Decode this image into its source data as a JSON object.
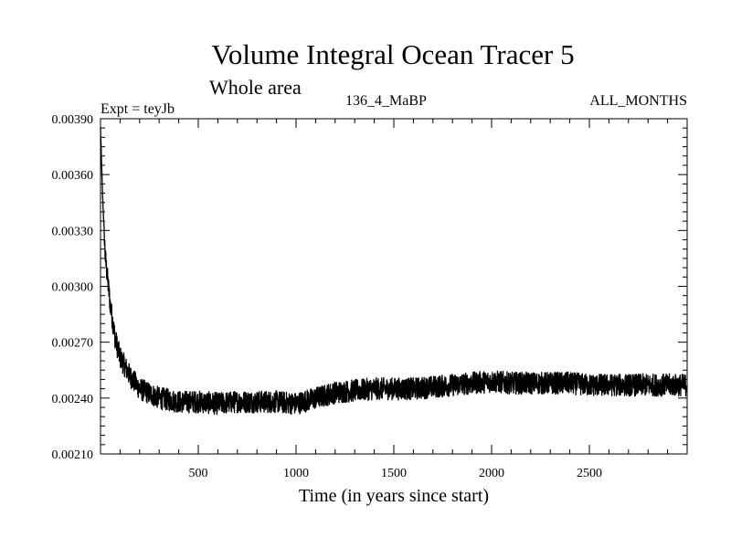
{
  "chart_data": {
    "type": "line",
    "title": "Volume Integral Ocean Tracer 5",
    "subtitle": "Whole area",
    "experiment": "Expt = teyJb",
    "run_label": "136_4_MaBP",
    "season": "ALL_MONTHS",
    "xlabel": "Time (in years since start)",
    "ylabel": "",
    "xlim": [
      0,
      3000
    ],
    "ylim": [
      0.0021,
      0.0039
    ],
    "x_ticks": [
      500,
      1000,
      1500,
      2000,
      2500
    ],
    "x_tick_labels": [
      "500",
      "1000",
      "1500",
      "2000",
      "2500"
    ],
    "y_ticks": [
      0.0021,
      0.0024,
      0.0027,
      0.003,
      0.0033,
      0.0036,
      0.0039
    ],
    "y_tick_labels": [
      "0.00210",
      "0.00240",
      "0.00270",
      "0.00300",
      "0.00330",
      "0.00360",
      "0.00390"
    ],
    "series": [
      {
        "name": "Tracer 5",
        "color": "#000000",
        "x": [
          0,
          10,
          25,
          50,
          75,
          100,
          150,
          200,
          300,
          400,
          500,
          600,
          700,
          800,
          900,
          1000,
          1100,
          1200,
          1300,
          1400,
          1500,
          1600,
          1700,
          1800,
          1900,
          2000,
          2100,
          2200,
          2300,
          2400,
          2500,
          2600,
          2700,
          2800,
          2900,
          3000
        ],
        "values": [
          0.00385,
          0.0035,
          0.00315,
          0.0029,
          0.00272,
          0.00262,
          0.00252,
          0.00245,
          0.0024,
          0.00238,
          0.00238,
          0.00237,
          0.00238,
          0.00238,
          0.00238,
          0.00237,
          0.0024,
          0.00243,
          0.00244,
          0.00245,
          0.00245,
          0.00245,
          0.00246,
          0.00247,
          0.00248,
          0.00249,
          0.00248,
          0.00248,
          0.00248,
          0.00248,
          0.00247,
          0.00247,
          0.00247,
          0.00247,
          0.00247,
          0.00247
        ],
        "noise_amplitude": 6e-05
      }
    ]
  }
}
